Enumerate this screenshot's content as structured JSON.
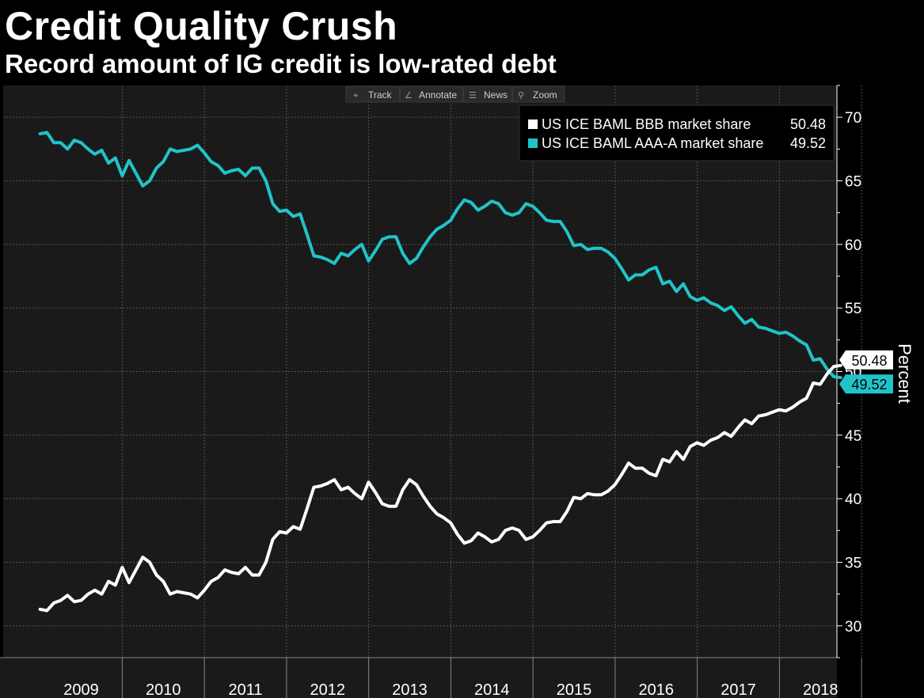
{
  "title": "Credit Quality Crush",
  "subtitle": "Record amount of IG credit is low-rated debt",
  "toolbar": {
    "track_label": "Track",
    "annotate_label": "Annotate",
    "news_label": "News",
    "zoom_label": "Zoom"
  },
  "colors": {
    "background": "#000000",
    "plot_background": "#1a1a1a",
    "bbb": "#ffffff",
    "aaa_a": "#20c4c8",
    "grid": "#555555"
  },
  "chart_data": {
    "type": "line",
    "title": "Credit Quality Crush",
    "subtitle": "Record amount of IG credit is low-rated debt",
    "xlabel": "",
    "ylabel": "Percent",
    "ylim": [
      27.5,
      72.5
    ],
    "yticks": [
      30,
      35,
      40,
      45,
      50,
      55,
      60,
      65,
      70
    ],
    "x_start": 2009.0,
    "x_step": 0.0833,
    "year_labels": [
      "2009",
      "2010",
      "2011",
      "2012",
      "2013",
      "2014",
      "2015",
      "2016",
      "2017",
      "2018"
    ],
    "grid": true,
    "legend_position": "top-right",
    "series": [
      {
        "name": "US ICE BAML BBB market share",
        "last_value": "50.48",
        "color": "#ffffff",
        "values": [
          31.3,
          31.2,
          31.8,
          32.0,
          32.4,
          31.9,
          32.0,
          32.5,
          32.8,
          32.5,
          33.5,
          33.2,
          34.6,
          33.4,
          34.4,
          35.4,
          35.0,
          34.0,
          33.5,
          32.5,
          32.7,
          32.6,
          32.5,
          32.2,
          32.8,
          33.5,
          33.8,
          34.4,
          34.2,
          34.1,
          34.6,
          34.0,
          34.0,
          35.0,
          36.8,
          37.4,
          37.3,
          37.8,
          37.6,
          39.2,
          40.9,
          41.0,
          41.2,
          41.5,
          40.7,
          40.9,
          40.4,
          40.0,
          41.3,
          40.5,
          39.6,
          39.4,
          39.4,
          40.7,
          41.5,
          41.1,
          40.2,
          39.4,
          38.8,
          38.5,
          38.1,
          37.2,
          36.5,
          36.7,
          37.3,
          37.0,
          36.6,
          36.8,
          37.5,
          37.7,
          37.5,
          36.8,
          37.0,
          37.5,
          38.1,
          38.2,
          38.2,
          39.0,
          40.1,
          40.0,
          40.4,
          40.3,
          40.3,
          40.6,
          41.1,
          41.9,
          42.8,
          42.4,
          42.4,
          42.0,
          41.8,
          43.1,
          42.9,
          43.7,
          43.1,
          44.1,
          44.4,
          44.2,
          44.6,
          44.8,
          45.2,
          44.9,
          45.6,
          46.2,
          45.9,
          46.5,
          46.6,
          46.8,
          47.0,
          46.9,
          47.2,
          47.6,
          47.9,
          49.1,
          49.0,
          49.8,
          50.4,
          50.48
        ]
      },
      {
        "name": "US ICE BAML AAA-A market share",
        "last_value": "49.52",
        "color": "#20c4c8",
        "values": [
          68.7,
          68.8,
          68.0,
          68.0,
          67.5,
          68.2,
          68.0,
          67.5,
          67.1,
          67.4,
          66.4,
          66.8,
          65.4,
          66.6,
          65.6,
          64.6,
          65.0,
          66.0,
          66.5,
          67.5,
          67.3,
          67.4,
          67.5,
          67.8,
          67.2,
          66.5,
          66.2,
          65.6,
          65.8,
          65.9,
          65.4,
          66.0,
          66.0,
          65.0,
          63.2,
          62.6,
          62.7,
          62.2,
          62.4,
          60.8,
          59.1,
          59.0,
          58.8,
          58.5,
          59.3,
          59.1,
          59.6,
          60.0,
          58.7,
          59.5,
          60.4,
          60.6,
          60.6,
          59.3,
          58.5,
          58.9,
          59.8,
          60.6,
          61.2,
          61.5,
          61.9,
          62.8,
          63.5,
          63.3,
          62.7,
          63.0,
          63.4,
          63.2,
          62.5,
          62.3,
          62.5,
          63.2,
          63.0,
          62.5,
          61.9,
          61.8,
          61.8,
          61.0,
          59.9,
          60.0,
          59.6,
          59.7,
          59.7,
          59.4,
          58.9,
          58.1,
          57.2,
          57.6,
          57.6,
          58.0,
          58.2,
          56.9,
          57.1,
          56.3,
          56.9,
          55.9,
          55.6,
          55.8,
          55.4,
          55.2,
          54.8,
          55.1,
          54.4,
          53.8,
          54.1,
          53.5,
          53.4,
          53.2,
          53.0,
          53.1,
          52.8,
          52.4,
          52.1,
          50.9,
          51.0,
          50.2,
          49.6,
          49.52
        ]
      }
    ]
  }
}
